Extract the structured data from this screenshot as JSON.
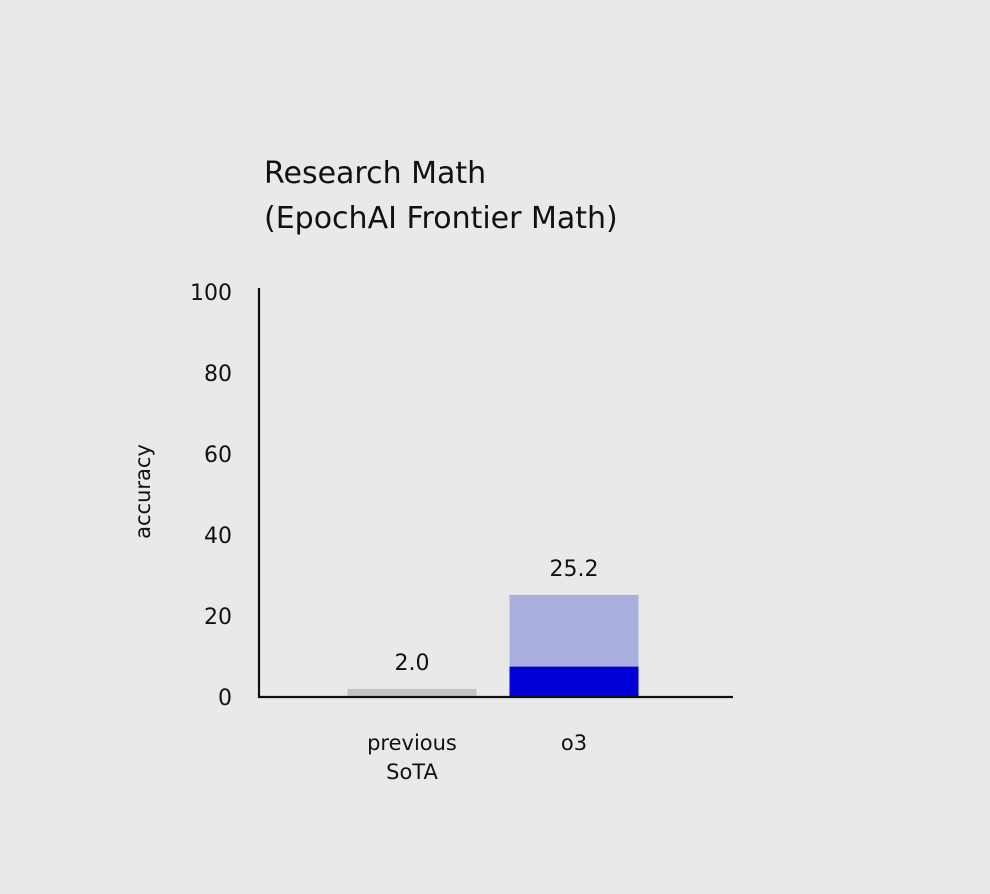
{
  "chart_data": {
    "type": "bar",
    "title_lines": [
      "Research Math",
      "(EpochAI Frontier Math)"
    ],
    "xlabel": "",
    "ylabel": "accuracy",
    "ylim": [
      0,
      100
    ],
    "yticks": [
      0,
      20,
      40,
      60,
      80,
      100
    ],
    "grid": false,
    "categories": [
      {
        "lines": [
          "previous",
          "SoTA"
        ]
      },
      {
        "lines": [
          "o3"
        ]
      }
    ],
    "values": [
      2.0,
      25.2
    ],
    "value_labels": [
      "2.0",
      "25.2"
    ],
    "inner_segment": {
      "category_index": 1,
      "value": 7.5
    },
    "colors": {
      "previous_bar": "#c4c4c4",
      "o3_bar_light": "#a9b0e0",
      "o3_bar_dark": "#0000d6",
      "axis": "#111111",
      "background": "#e9e9e9"
    }
  }
}
